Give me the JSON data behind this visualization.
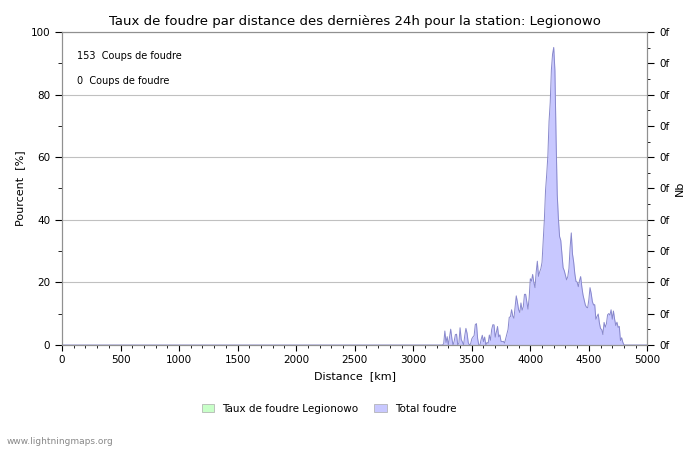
{
  "title": "Taux de foudre par distance des dernières 24h pour la station: Legionowo",
  "xlabel": "Distance  [km]",
  "ylabel_left": "Pourcent  [%]",
  "ylabel_right": "Nb",
  "annotation_line1": "153  Coups de foudre",
  "annotation_line2": "0  Coups de foudre",
  "xlim": [
    0,
    5000
  ],
  "ylim": [
    0,
    100
  ],
  "xticks": [
    0,
    500,
    1000,
    1500,
    2000,
    2500,
    3000,
    3500,
    4000,
    4500,
    5000
  ],
  "yticks_left": [
    0,
    20,
    40,
    60,
    80,
    100
  ],
  "legend_label1": "Taux de foudre Legionowo",
  "legend_label2": "Total foudre",
  "fill_color_total": "#c8c8ff",
  "line_color_total": "#8888cc",
  "fill_color_local": "#c8ffc8",
  "line_color_local": "#88cc88",
  "background_color": "#ffffff",
  "grid_color": "#c0c0c0",
  "watermark": "www.lightningmaps.org",
  "title_fontsize": 9.5,
  "axis_fontsize": 8,
  "tick_fontsize": 7.5
}
